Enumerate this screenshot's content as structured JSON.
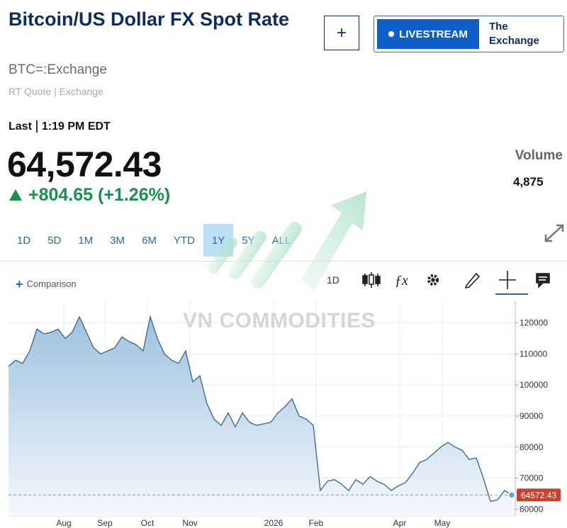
{
  "header": {
    "title": "Bitcoin/US Dollar FX Spot Rate",
    "symbol": "BTC=:Exchange",
    "quote_source": "RT Quote | Exchange",
    "add_button": "+",
    "livestream": {
      "button": "LIVESTREAM",
      "show": "The Exchange"
    }
  },
  "quote": {
    "last_label": "Last",
    "time": "1:19 PM EDT",
    "price": "64,572.43",
    "change": "+804.65 (+1.26%)",
    "volume_label": "Volume",
    "volume": "4,875"
  },
  "range_tabs": {
    "items": [
      "1D",
      "5D",
      "1M",
      "3M",
      "6M",
      "YTD",
      "1Y",
      "5Y",
      "ALL"
    ],
    "selected": "1Y"
  },
  "toolbar": {
    "comparison": "Comparison",
    "interval": "1D"
  },
  "watermark": "VN COMMODITIES",
  "chart_data": {
    "type": "area",
    "x": [
      0,
      5,
      10,
      15,
      20,
      25,
      30,
      35,
      40,
      45,
      50,
      55,
      60,
      65,
      70,
      75,
      80,
      85,
      90,
      95,
      100,
      105,
      110,
      115,
      120,
      125,
      130,
      135,
      140,
      145,
      150,
      155,
      160,
      165,
      170,
      175,
      180,
      185,
      190,
      195,
      200,
      205,
      210,
      215,
      220,
      225,
      230,
      235,
      240,
      245,
      250,
      255,
      260,
      265,
      270,
      275,
      280,
      285,
      290,
      295,
      300,
      305,
      310,
      315,
      320,
      325,
      330,
      335,
      340,
      345,
      350,
      355
    ],
    "values": [
      106000,
      108000,
      107000,
      111000,
      118000,
      116500,
      117000,
      118000,
      115000,
      117000,
      122000,
      117000,
      112000,
      110000,
      111000,
      112000,
      115500,
      114000,
      113000,
      111000,
      122000,
      115000,
      110000,
      108000,
      107000,
      111000,
      101000,
      103000,
      94000,
      89000,
      87000,
      91000,
      86500,
      91000,
      88000,
      87000,
      87500,
      88000,
      91000,
      93000,
      95500,
      90000,
      89000,
      87000,
      66000,
      69000,
      69500,
      68000,
      66000,
      69500,
      68000,
      70500,
      69000,
      68000,
      66000,
      67500,
      68500,
      71500,
      75000,
      76000,
      78000,
      80000,
      81500,
      80000,
      79000,
      76000,
      76500,
      70000,
      62500,
      63000,
      66000,
      64572.43
    ],
    "xlim": [
      0,
      355
    ],
    "ylim": [
      57800,
      127000
    ],
    "xticks": [
      {
        "value": 39,
        "label": "Aug"
      },
      {
        "value": 68,
        "label": "Sep"
      },
      {
        "value": 98,
        "label": "Oct"
      },
      {
        "value": 128,
        "label": "Nov"
      },
      {
        "value": 187,
        "label": "2026"
      },
      {
        "value": 217,
        "label": "Feb"
      },
      {
        "value": 276,
        "label": "Apr"
      },
      {
        "value": 306,
        "label": "May"
      }
    ],
    "yticks": [
      60000,
      70000,
      80000,
      90000,
      100000,
      110000,
      120000
    ],
    "color": "#3b6e97",
    "grid": true,
    "last_value_line": true
  }
}
